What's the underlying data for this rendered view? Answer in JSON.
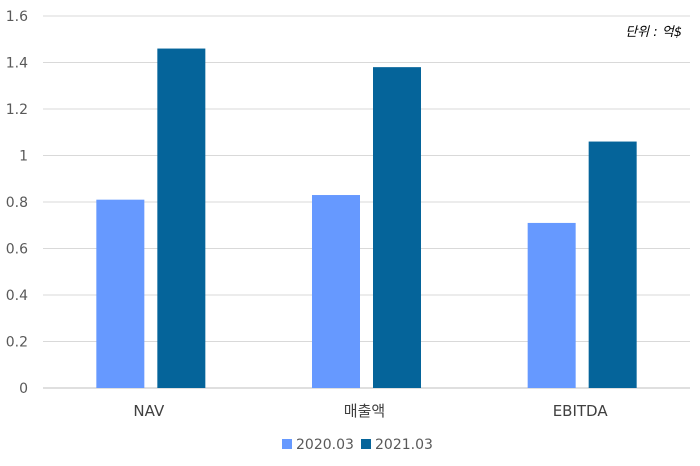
{
  "chart_data": {
    "type": "bar",
    "categories": [
      "NAV",
      "매출액",
      "EBITDA"
    ],
    "series": [
      {
        "name": "2020.03",
        "color": "#6699ff",
        "values": [
          0.81,
          0.83,
          0.71
        ]
      },
      {
        "name": "2021.03",
        "color": "#05649a",
        "values": [
          1.46,
          1.38,
          1.06
        ]
      }
    ],
    "ylim": [
      0,
      1.6
    ],
    "yticks": [
      "0",
      "0.2",
      "0.4",
      "0.6",
      "0.8",
      "1",
      "1.2",
      "1.4",
      "1.6"
    ],
    "grid": true,
    "legend_position": "bottom",
    "unit_note": "단위 : 억$"
  }
}
